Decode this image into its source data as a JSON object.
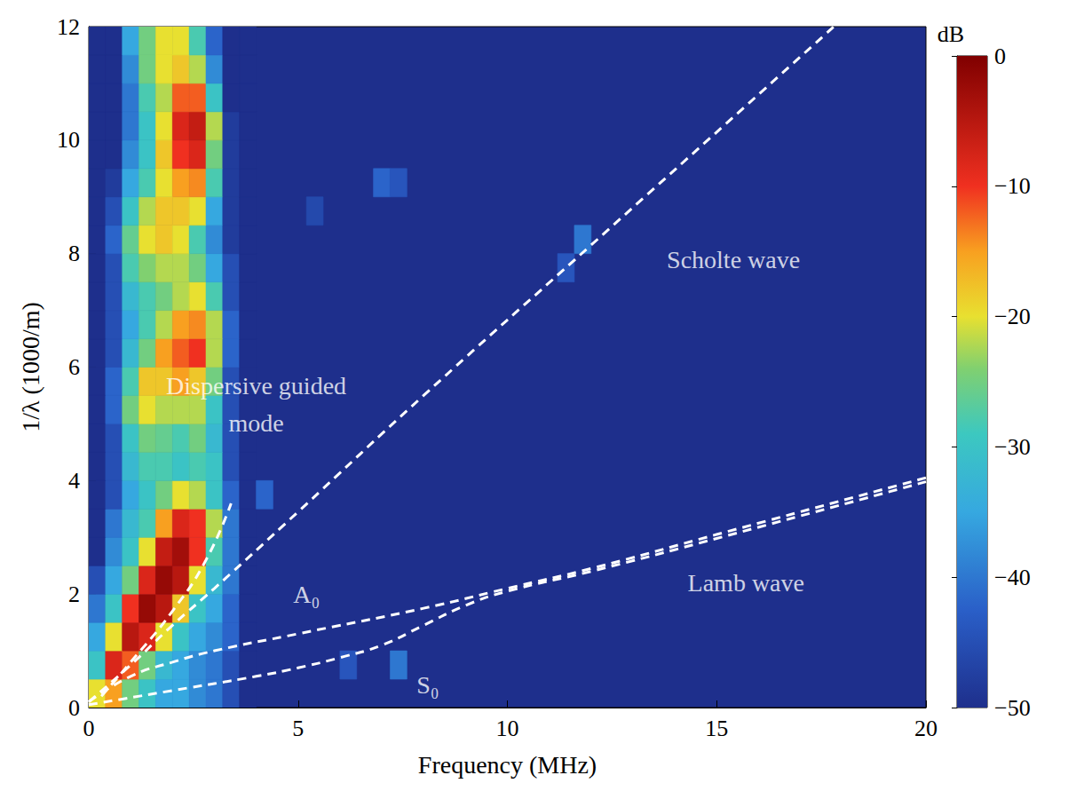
{
  "chart_data": {
    "type": "heatmap",
    "xlabel": "Frequency (MHz)",
    "ylabel": "1/λ (1000/m)",
    "xlim": [
      0,
      20
    ],
    "xticks": [
      0,
      5,
      10,
      15,
      20
    ],
    "ylim": [
      0,
      12
    ],
    "yticks": [
      0,
      2,
      4,
      6,
      8,
      10,
      12
    ],
    "grid": false,
    "colorbar": {
      "label": "dB",
      "range": [
        -50,
        0
      ],
      "ticks": [
        0,
        {
          "value": -10,
          "label": "−10"
        },
        {
          "value": -20,
          "label": "−20"
        },
        {
          "value": -30,
          "label": "−30"
        },
        {
          "value": -40,
          "label": "−40"
        },
        {
          "value": -50,
          "label": "−50"
        }
      ]
    },
    "heatmap": {
      "x": [
        0.2,
        0.6,
        1.0,
        1.4,
        1.8,
        2.2,
        2.6,
        3.0,
        3.4,
        3.8
      ],
      "y": [
        0.25,
        0.75,
        1.25,
        1.75,
        2.25,
        2.75,
        3.25,
        3.75,
        4.25,
        4.75,
        5.25,
        5.75,
        6.25,
        6.75,
        7.25,
        7.75,
        8.25,
        8.75,
        9.25,
        9.75,
        10.25,
        10.75,
        11.25,
        11.75
      ],
      "values": [
        [
          -20,
          -15,
          -25,
          -30,
          -35,
          -35,
          -38,
          -40,
          -45,
          -50
        ],
        [
          -30,
          -8,
          -12,
          -25,
          -32,
          -35,
          -38,
          -40,
          -45,
          -50
        ],
        [
          -35,
          -20,
          -5,
          -8,
          -20,
          -30,
          -35,
          -38,
          -42,
          -50
        ],
        [
          -40,
          -30,
          -10,
          -2,
          -5,
          -18,
          -30,
          -35,
          -42,
          -50
        ],
        [
          -45,
          -35,
          -25,
          -8,
          -2,
          -5,
          -20,
          -32,
          -40,
          -50
        ],
        [
          -50,
          -38,
          -30,
          -20,
          -6,
          -3,
          -10,
          -28,
          -40,
          -50
        ],
        [
          -50,
          -40,
          -32,
          -28,
          -15,
          -8,
          -10,
          -22,
          -40,
          -50
        ],
        [
          -50,
          -45,
          -35,
          -30,
          -25,
          -20,
          -22,
          -30,
          -42,
          -50
        ],
        [
          -50,
          -45,
          -32,
          -28,
          -28,
          -30,
          -28,
          -30,
          -45,
          -50
        ],
        [
          -50,
          -45,
          -30,
          -25,
          -26,
          -28,
          -25,
          -32,
          -45,
          -50
        ],
        [
          -50,
          -42,
          -25,
          -20,
          -22,
          -22,
          -22,
          -30,
          -45,
          -50
        ],
        [
          -50,
          -42,
          -28,
          -18,
          -18,
          -15,
          -18,
          -25,
          -45,
          -50
        ],
        [
          -50,
          -45,
          -32,
          -25,
          -15,
          -12,
          -10,
          -22,
          -42,
          -50
        ],
        [
          -50,
          -45,
          -35,
          -28,
          -22,
          -15,
          -14,
          -22,
          -42,
          -50
        ],
        [
          -50,
          -45,
          -32,
          -28,
          -25,
          -22,
          -20,
          -28,
          -45,
          -50
        ],
        [
          -50,
          -45,
          -28,
          -24,
          -22,
          -22,
          -25,
          -35,
          -45,
          -50
        ],
        [
          -50,
          -42,
          -26,
          -20,
          -18,
          -20,
          -28,
          -38,
          -48,
          -50
        ],
        [
          -50,
          -45,
          -30,
          -22,
          -18,
          -18,
          -20,
          -35,
          -48,
          -50
        ],
        [
          -50,
          -48,
          -35,
          -28,
          -20,
          -15,
          -14,
          -28,
          -48,
          -50
        ],
        [
          -50,
          -50,
          -38,
          -30,
          -18,
          -10,
          -8,
          -25,
          -48,
          -50
        ],
        [
          -50,
          -50,
          -40,
          -30,
          -20,
          -8,
          -6,
          -22,
          -48,
          -50
        ],
        [
          -50,
          -50,
          -40,
          -28,
          -22,
          -12,
          -12,
          -30,
          -50,
          -50
        ],
        [
          -50,
          -50,
          -38,
          -25,
          -20,
          -18,
          -22,
          -38,
          -50,
          -50
        ],
        [
          -50,
          -50,
          -35,
          -25,
          -20,
          -20,
          -28,
          -42,
          -50,
          -50
        ]
      ],
      "extra_cells": [
        [
          4.2,
          3.75,
          -42
        ],
        [
          6.2,
          0.75,
          -44
        ],
        [
          7.4,
          0.75,
          -40
        ],
        [
          7.0,
          9.25,
          -42
        ],
        [
          7.4,
          9.25,
          -44
        ],
        [
          11.8,
          8.25,
          -40
        ],
        [
          11.4,
          7.75,
          -44
        ],
        [
          5.4,
          8.75,
          -46
        ]
      ]
    },
    "series": [
      {
        "type": "line",
        "color": "#ffffff",
        "line_style": "dashed",
        "x": [
          0,
          1,
          2,
          3,
          5,
          8,
          12,
          17.8
        ],
        "values": [
          0.1,
          0.75,
          1.45,
          2.1,
          3.45,
          5.5,
          8.15,
          12
        ]
      },
      {
        "type": "line",
        "color": "#ffffff",
        "line_style": "dashed",
        "x": [
          0,
          1,
          2,
          3,
          5,
          8,
          10,
          12,
          15,
          20
        ],
        "values": [
          0.1,
          0.55,
          0.8,
          1.0,
          1.3,
          1.75,
          2.1,
          2.45,
          3.05,
          4.05
        ]
      },
      {
        "type": "line",
        "color": "#ffffff",
        "line_style": "dashed",
        "x": [
          0,
          2,
          4,
          5,
          6,
          7,
          8,
          9,
          10,
          12,
          15,
          20
        ],
        "values": [
          0.05,
          0.3,
          0.55,
          0.7,
          0.88,
          1.1,
          1.45,
          1.8,
          2.05,
          2.4,
          2.98,
          3.98
        ]
      },
      {
        "type": "line",
        "color": "#ffffff",
        "line_style": "dashed",
        "x": [
          0.3,
          1,
          2,
          2.8,
          3.4
        ],
        "values": [
          0.2,
          0.8,
          1.7,
          2.6,
          3.6
        ]
      }
    ],
    "annotations": [
      {
        "text": "Scholte wave",
        "x": 15.4,
        "y": 7.9
      },
      {
        "text": "Lamb wave",
        "x": 15.7,
        "y": 2.2
      },
      {
        "text": "A₀",
        "x": 5.2,
        "y": 2.0
      },
      {
        "text": "S₀",
        "x": 8.1,
        "y": 0.4
      },
      {
        "text": "Dispersive guided\nmode",
        "x": 4.0,
        "y": 5.35
      }
    ]
  }
}
